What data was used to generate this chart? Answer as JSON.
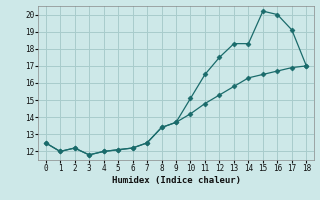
{
  "xlabel": "Humidex (Indice chaleur)",
  "bg_color": "#cde8e8",
  "grid_color": "#a8cccc",
  "line_color": "#1a6b6b",
  "marker_color": "#1a6b6b",
  "xlim": [
    -0.5,
    18.5
  ],
  "ylim": [
    11.5,
    20.5
  ],
  "xticks": [
    0,
    1,
    2,
    3,
    4,
    5,
    6,
    7,
    8,
    9,
    10,
    11,
    12,
    13,
    14,
    15,
    16,
    17,
    18
  ],
  "yticks": [
    12,
    13,
    14,
    15,
    16,
    17,
    18,
    19,
    20
  ],
  "series1_x": [
    0,
    1,
    2,
    3,
    4,
    5,
    6,
    7,
    8,
    9,
    10,
    11,
    12,
    13,
    14,
    15,
    16,
    17,
    18
  ],
  "series1_y": [
    12.5,
    12.0,
    12.2,
    11.8,
    12.0,
    12.1,
    12.2,
    12.5,
    13.4,
    13.7,
    15.1,
    16.5,
    17.5,
    18.3,
    18.3,
    20.2,
    20.0,
    19.1,
    17.0
  ],
  "series2_x": [
    0,
    1,
    2,
    3,
    4,
    5,
    6,
    7,
    8,
    9,
    10,
    11,
    12,
    13,
    14,
    15,
    16,
    17,
    18
  ],
  "series2_y": [
    12.5,
    12.0,
    12.2,
    11.8,
    12.0,
    12.1,
    12.2,
    12.5,
    13.4,
    13.7,
    14.2,
    14.8,
    15.3,
    15.8,
    16.3,
    16.5,
    16.7,
    16.9,
    17.0
  ]
}
